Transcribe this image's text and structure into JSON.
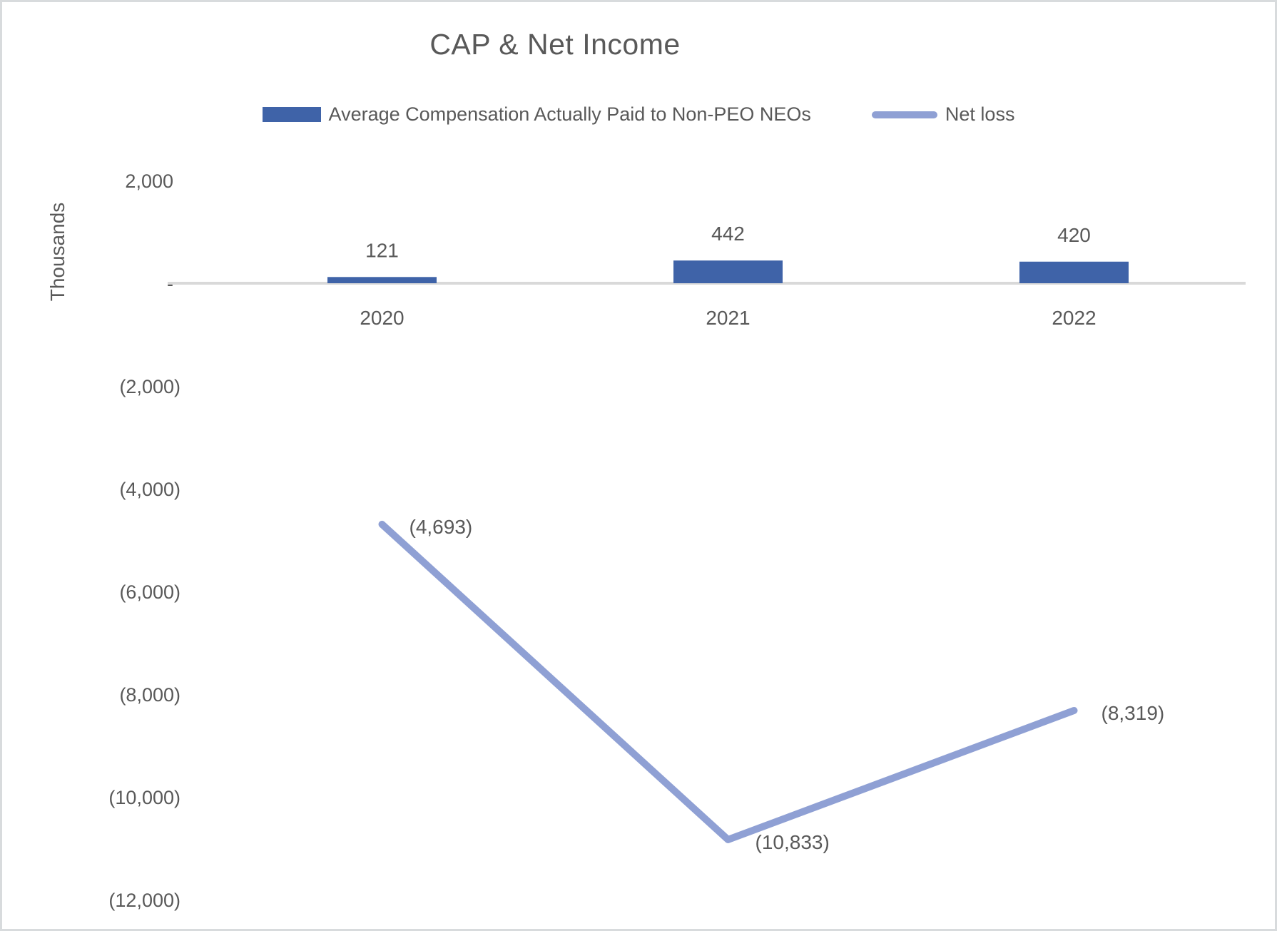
{
  "frame": {
    "background_color": "#ffffff",
    "border_color": "#d8dbdd"
  },
  "chart_data": {
    "type": "combo",
    "title": "CAP & Net Income",
    "ylabel": "Thousands",
    "xlabel": "",
    "categories": [
      "2020",
      "2021",
      "2022"
    ],
    "series": [
      {
        "name": "Average Compensation Actually Paid to Non-PEO NEOs",
        "type": "bar",
        "color": "#3f63a8",
        "values": [
          121,
          442,
          420
        ],
        "data_labels": [
          "121",
          "442",
          "420"
        ]
      },
      {
        "name": "Net loss",
        "type": "line",
        "color": "#8fa0d4",
        "values": [
          -4693,
          -10833,
          -8319
        ],
        "data_labels": [
          "(4,693)",
          "(10,833)",
          "(8,319)"
        ]
      }
    ],
    "y_axis": {
      "min": -12000,
      "max": 2000,
      "step": 2000,
      "ticks": [
        {
          "value": 2000,
          "label": "2,000"
        },
        {
          "value": 0,
          "label": "-"
        },
        {
          "value": -2000,
          "label": "(2,000)"
        },
        {
          "value": -4000,
          "label": "(4,000)"
        },
        {
          "value": -6000,
          "label": "(6,000)"
        },
        {
          "value": -8000,
          "label": "(8,000)"
        },
        {
          "value": -10000,
          "label": "(10,000)"
        },
        {
          "value": -12000,
          "label": "(12,000)"
        }
      ]
    },
    "gridlines": "zero-line-only",
    "gridline_color": "#d9d9d9",
    "text_color": "#595959",
    "legend_position": "top"
  }
}
